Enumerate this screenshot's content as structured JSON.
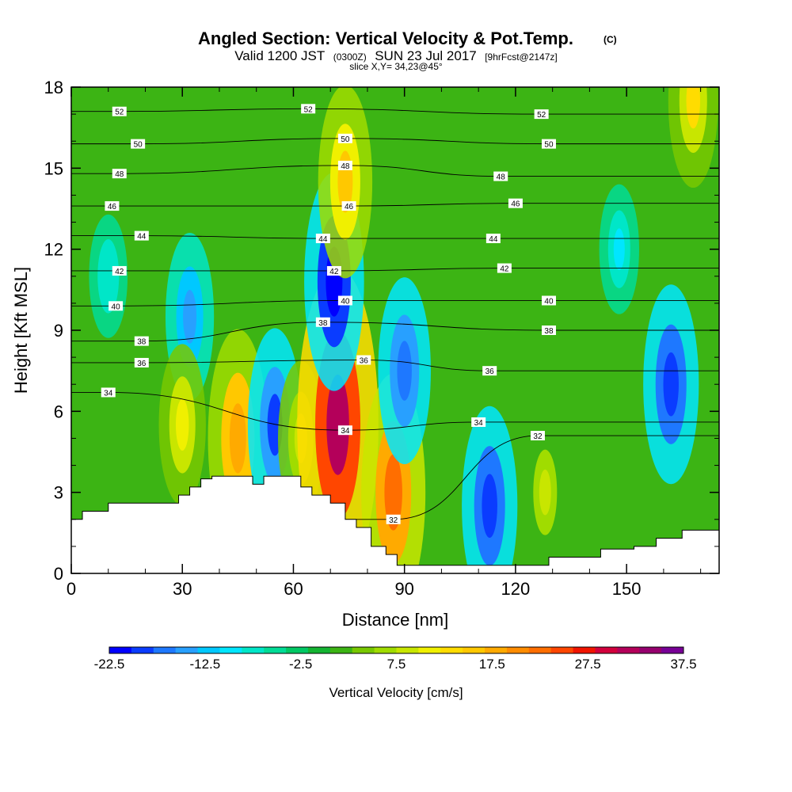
{
  "chart_data": {
    "type": "heatmap",
    "title": {
      "main": "Angled Section: Vertical Velocity & Pot.Temp.",
      "copyright": "(C)",
      "valid_prefix": "Valid 1200 JST",
      "utc": "(0300Z)",
      "valid_suffix": "SUN 23 Jul 2017",
      "forecast": "[9hrFcst@2147z]",
      "slice": "slice X,Y= 34,23@45°"
    },
    "xlabel": "Distance [nm]",
    "ylabel": "Height [Kft MSL]",
    "xlim": [
      0,
      175
    ],
    "ylim": [
      0,
      18
    ],
    "x_ticks": [
      0,
      30,
      60,
      90,
      120,
      150
    ],
    "x_tick_labels": [
      "0",
      "30",
      "60",
      "90",
      "120",
      "150"
    ],
    "y_ticks": [
      0,
      3,
      6,
      9,
      12,
      15,
      18
    ],
    "y_tick_labels": [
      "0",
      "3",
      "6",
      "9",
      "12",
      "15",
      "18"
    ],
    "colorbar": {
      "title": "Vertical Velocity [cm/s]",
      "min": -22.5,
      "max": 37.5,
      "step": 2.5,
      "tick_labels": [
        "-22.5",
        "-12.5",
        "-2.5",
        "7.5",
        "17.5",
        "27.5",
        "37.5"
      ],
      "colors": [
        "#0000ff",
        "#0a3cff",
        "#1e78ff",
        "#28a0ff",
        "#00c8ff",
        "#00e6ff",
        "#00e6c8",
        "#00dc96",
        "#00c864",
        "#14b432",
        "#3cb414",
        "#78c800",
        "#a0dc00",
        "#c8e600",
        "#f0f000",
        "#ffdc00",
        "#ffc800",
        "#ffaa00",
        "#ff8c00",
        "#ff6e00",
        "#ff4600",
        "#f01400",
        "#d2003c",
        "#b4005a",
        "#96006e",
        "#780096"
      ]
    },
    "contour_field": "Potential Temperature",
    "contour_labels": [
      {
        "x": 13,
        "y": 17.1,
        "text": "52"
      },
      {
        "x": 64,
        "y": 17.2,
        "text": "52"
      },
      {
        "x": 127,
        "y": 17.0,
        "text": "52"
      },
      {
        "x": 18,
        "y": 15.9,
        "text": "50"
      },
      {
        "x": 74,
        "y": 16.1,
        "text": "50"
      },
      {
        "x": 129,
        "y": 15.9,
        "text": "50"
      },
      {
        "x": 13,
        "y": 14.8,
        "text": "48"
      },
      {
        "x": 74,
        "y": 15.1,
        "text": "48"
      },
      {
        "x": 116,
        "y": 14.7,
        "text": "48"
      },
      {
        "x": 11,
        "y": 13.6,
        "text": "46"
      },
      {
        "x": 75,
        "y": 13.6,
        "text": "46"
      },
      {
        "x": 120,
        "y": 13.7,
        "text": "46"
      },
      {
        "x": 19,
        "y": 12.5,
        "text": "44"
      },
      {
        "x": 68,
        "y": 12.4,
        "text": "44"
      },
      {
        "x": 114,
        "y": 12.4,
        "text": "44"
      },
      {
        "x": 13,
        "y": 11.2,
        "text": "42"
      },
      {
        "x": 71,
        "y": 11.2,
        "text": "42"
      },
      {
        "x": 117,
        "y": 11.3,
        "text": "42"
      },
      {
        "x": 12,
        "y": 9.9,
        "text": "40"
      },
      {
        "x": 74,
        "y": 10.1,
        "text": "40"
      },
      {
        "x": 129,
        "y": 10.1,
        "text": "40"
      },
      {
        "x": 19,
        "y": 8.6,
        "text": "38"
      },
      {
        "x": 68,
        "y": 9.3,
        "text": "38"
      },
      {
        "x": 129,
        "y": 9.0,
        "text": "38"
      },
      {
        "x": 19,
        "y": 7.8,
        "text": "36"
      },
      {
        "x": 79,
        "y": 7.9,
        "text": "36"
      },
      {
        "x": 113,
        "y": 7.5,
        "text": "36"
      },
      {
        "x": 10,
        "y": 6.7,
        "text": "34"
      },
      {
        "x": 74,
        "y": 5.3,
        "text": "34"
      },
      {
        "x": 110,
        "y": 5.6,
        "text": "34"
      },
      {
        "x": 87,
        "y": 2.0,
        "text": "32"
      },
      {
        "x": 126,
        "y": 5.1,
        "text": "32"
      }
    ],
    "vertical_velocity_cells": [
      {
        "x": 10,
        "y": 11,
        "value": -7
      },
      {
        "x": 32,
        "y": 9.5,
        "value": -14
      },
      {
        "x": 30,
        "y": 5.5,
        "value": 13
      },
      {
        "x": 45,
        "y": 5.0,
        "value": 22
      },
      {
        "x": 55,
        "y": 5.5,
        "value": -18
      },
      {
        "x": 62,
        "y": 5.0,
        "value": 12
      },
      {
        "x": 72,
        "y": 5.5,
        "value": 37
      },
      {
        "x": 87,
        "y": 3.0,
        "value": 25
      },
      {
        "x": 71,
        "y": 10.8,
        "value": -22
      },
      {
        "x": 74,
        "y": 14.5,
        "value": 18
      },
      {
        "x": 90,
        "y": 7.5,
        "value": -17
      },
      {
        "x": 113,
        "y": 2.5,
        "value": -19
      },
      {
        "x": 162,
        "y": 7.0,
        "value": -19
      },
      {
        "x": 148,
        "y": 12.0,
        "value": -8
      },
      {
        "x": 168,
        "y": 17.5,
        "value": 15
      },
      {
        "x": 128,
        "y": 3.0,
        "value": 10
      }
    ],
    "terrain": [
      [
        0,
        2.0
      ],
      [
        3,
        2.0
      ],
      [
        3,
        2.3
      ],
      [
        10,
        2.3
      ],
      [
        10,
        2.6
      ],
      [
        29,
        2.6
      ],
      [
        29,
        2.9
      ],
      [
        32,
        2.9
      ],
      [
        32,
        3.2
      ],
      [
        35,
        3.2
      ],
      [
        35,
        3.5
      ],
      [
        38,
        3.5
      ],
      [
        38,
        3.6
      ],
      [
        49,
        3.6
      ],
      [
        49,
        3.3
      ],
      [
        52,
        3.3
      ],
      [
        52,
        3.6
      ],
      [
        62,
        3.6
      ],
      [
        62,
        3.2
      ],
      [
        65,
        3.2
      ],
      [
        65,
        2.9
      ],
      [
        70,
        2.9
      ],
      [
        70,
        2.6
      ],
      [
        74,
        2.6
      ],
      [
        74,
        2.0
      ],
      [
        77,
        2.0
      ],
      [
        77,
        1.7
      ],
      [
        81,
        1.7
      ],
      [
        81,
        1.0
      ],
      [
        85,
        1.0
      ],
      [
        85,
        0.7
      ],
      [
        88,
        0.7
      ],
      [
        88,
        0.3
      ],
      [
        129,
        0.3
      ],
      [
        129,
        0.6
      ],
      [
        143,
        0.6
      ],
      [
        143,
        0.9
      ],
      [
        152,
        0.9
      ],
      [
        152,
        1.0
      ],
      [
        158,
        1.0
      ],
      [
        158,
        1.3
      ],
      [
        165,
        1.3
      ],
      [
        165,
        1.6
      ],
      [
        175,
        1.6
      ]
    ]
  }
}
